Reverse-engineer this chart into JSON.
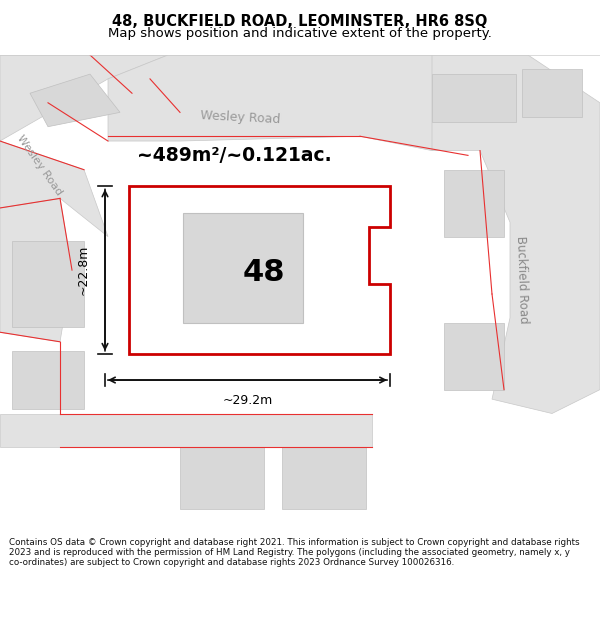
{
  "title_line1": "48, BUCKFIELD ROAD, LEOMINSTER, HR6 8SQ",
  "title_line2": "Map shows position and indicative extent of the property.",
  "footer_text": "Contains OS data © Crown copyright and database right 2021. This information is subject to Crown copyright and database rights 2023 and is reproduced with the permission of HM Land Registry. The polygons (including the associated geometry, namely x, y co-ordinates) are subject to Crown copyright and database rights 2023 Ordnance Survey 100026316.",
  "area_text": "~489m²/~0.121ac.",
  "number_label": "48",
  "dim_height": "~22.8m",
  "dim_width": "~29.2m",
  "road_label_wesley": "Wesley Road",
  "road_label_wesley2": "Wesley Road",
  "road_label_buckfield": "Buckfield Road",
  "bg_color": "#f5f5f5",
  "map_bg": "#f0f0f0",
  "road_fill": "#e8e8e8",
  "red_outline": "#cc0000",
  "dim_line_color": "#111111",
  "title_bg": "#ffffff",
  "footer_bg": "#ffffff"
}
